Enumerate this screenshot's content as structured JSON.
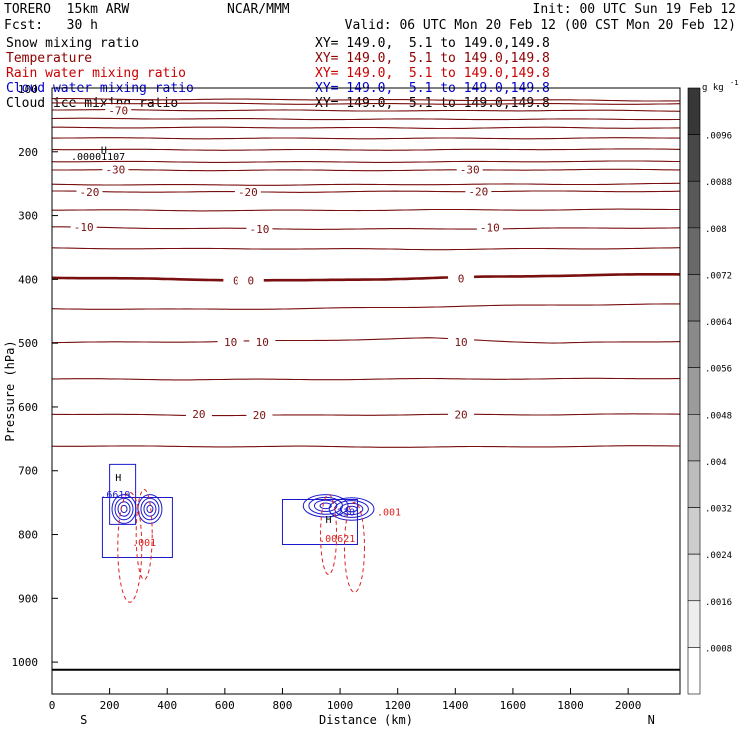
{
  "header": {
    "model": "TORERO  15km ARW",
    "org": "NCAR/MMM",
    "init": "Init: 00 UTC Sun 19 Feb 12",
    "fcst": "Fcst:   30 h",
    "valid": "Valid: 06 UTC Mon 20 Feb 12 (00 CST Mon 20 Feb 12)"
  },
  "fields": [
    {
      "name": "Snow mixing ratio",
      "xy": "XY= 149.0,  5.1 to 149.0,149.8",
      "color": "#000000"
    },
    {
      "name": "Temperature",
      "xy": "XY= 149.0,  5.1 to 149.0,149.8",
      "color": "#8b0000"
    },
    {
      "name": "Rain water mixing ratio",
      "xy": "XY= 149.0,  5.1 to 149.0,149.8",
      "color": "#cc0000"
    },
    {
      "name": "Cloud water mixing ratio",
      "xy": "XY= 149.0,  5.1 to 149.0,149.8",
      "color": "#0000cc"
    },
    {
      "name": "Cloud ice mixing ratio",
      "xy": "XY= 149.0,  5.1 to 149.0,149.8",
      "color": "#000000"
    }
  ],
  "overlay_label": "100",
  "colors": {
    "temperature": "#7a0f0f",
    "rain": "#dd2222",
    "cloud_water": "#1a1acc",
    "axis": "#000000"
  },
  "chart_data": {
    "type": "contour",
    "xlabel": "Distance (km)",
    "ylabel": "Pressure (hPa)",
    "xlim": [
      0,
      2180
    ],
    "ylim": [
      1050,
      100
    ],
    "x_ticks": [
      0,
      200,
      400,
      600,
      800,
      1000,
      1200,
      1400,
      1600,
      1800,
      2000
    ],
    "y_ticks": [
      200,
      300,
      400,
      500,
      600,
      700,
      800,
      900,
      1000
    ],
    "x_end_labels": {
      "left": "S",
      "right": "N"
    },
    "colorbar": {
      "unit": "g kg",
      "unit_sup": "-1",
      "ticks": [
        ".0008",
        ".0016",
        ".0024",
        ".0032",
        ".004",
        ".0048",
        ".0056",
        ".0064",
        ".0072",
        ".008",
        ".0088",
        ".0096"
      ]
    },
    "temperature_contours": [
      {
        "p": [
          117,
          118,
          118,
          119,
          119,
          120
        ],
        "label": ""
      },
      {
        "p": [
          124,
          124,
          125,
          125,
          125,
          125
        ],
        "label": ""
      },
      {
        "p": [
          134,
          135,
          135,
          136,
          135,
          136
        ],
        "label": "-70",
        "label_x": 760
      },
      {
        "p": [
          148,
          148,
          149,
          149,
          149,
          149
        ],
        "label": ""
      },
      {
        "p": [
          162,
          162,
          162,
          163,
          162,
          163
        ],
        "label": ""
      },
      {
        "p": [
          178,
          179,
          179,
          179,
          179,
          178
        ],
        "label": ""
      },
      {
        "p": [
          196,
          197,
          197,
          197,
          196,
          196
        ],
        "label": ""
      },
      {
        "p": [
          215,
          216,
          216,
          216,
          215,
          215
        ],
        "label": ""
      },
      {
        "p": [
          228,
          229,
          229,
          229,
          228,
          228
        ],
        "label": "-30",
        "label_x": 1060
      },
      {
        "p": [
          251,
          252,
          252,
          251,
          251,
          250
        ],
        "label": ""
      },
      {
        "p": [
          262,
          263,
          263,
          262,
          262,
          262
        ],
        "label": "-20",
        "label_x": 1080
      },
      {
        "p": [
          291,
          292,
          292,
          291,
          291,
          290
        ],
        "label": ""
      },
      {
        "p": [
          318,
          320,
          321,
          321,
          320,
          319
        ],
        "label": "-10",
        "label_x": 1110
      },
      {
        "p": [
          351,
          352,
          352,
          353,
          352,
          351
        ],
        "label": ""
      },
      {
        "p": [
          397,
          400,
          402,
          398,
          394,
          392
        ],
        "label": "0",
        "label_x": 1050,
        "bold": true
      },
      {
        "p": [
          446,
          447,
          446,
          443,
          440,
          439
        ],
        "label": ""
      },
      {
        "p": [
          499,
          498,
          496,
          492,
          500,
          497
        ],
        "label": "10",
        "label_x": 1050
      },
      {
        "p": [
          556,
          557,
          557,
          556,
          556,
          555
        ],
        "label": ""
      },
      {
        "p": [
          611,
          613,
          613,
          612,
          612,
          611
        ],
        "label": "20",
        "label_x": 1050
      },
      {
        "p": [
          661,
          662,
          662,
          663,
          662,
          661
        ],
        "label": ""
      }
    ],
    "temperature_labels": [
      {
        "x": 230,
        "p": 135,
        "text": "-70"
      },
      {
        "x": 220,
        "p": 228,
        "text": "-30"
      },
      {
        "x": 1450,
        "p": 228,
        "text": "-30"
      },
      {
        "x": 130,
        "p": 263,
        "text": "-20"
      },
      {
        "x": 680,
        "p": 263,
        "text": "-20"
      },
      {
        "x": 1480,
        "p": 262,
        "text": "-20"
      },
      {
        "x": 110,
        "p": 318,
        "text": "-10"
      },
      {
        "x": 720,
        "p": 321,
        "text": "-10"
      },
      {
        "x": 1520,
        "p": 319,
        "text": "-10"
      },
      {
        "x": 640,
        "p": 402,
        "text": "0"
      },
      {
        "x": 690,
        "p": 402,
        "text": "0"
      },
      {
        "x": 1420,
        "p": 399,
        "text": "0"
      },
      {
        "x": 620,
        "p": 498,
        "text": "10"
      },
      {
        "x": 730,
        "p": 498,
        "text": "10"
      },
      {
        "x": 1420,
        "p": 498,
        "text": "10"
      },
      {
        "x": 510,
        "p": 611,
        "text": "20"
      },
      {
        "x": 720,
        "p": 613,
        "text": "20"
      },
      {
        "x": 1420,
        "p": 612,
        "text": "20"
      }
    ],
    "annotations": [
      {
        "x": 180,
        "p": 203,
        "text": "H"
      },
      {
        "x": 160,
        "p": 213,
        "text": ".00001107"
      },
      {
        "x": 230,
        "p": 716,
        "text": "H"
      },
      {
        "x": 220,
        "p": 743,
        "text": ".6619"
      },
      {
        "x": 320,
        "p": 818,
        "text": ".001"
      },
      {
        "x": 1010,
        "p": 770,
        "text": ".230"
      },
      {
        "x": 1170,
        "p": 770,
        "text": ".001"
      },
      {
        "x": 990,
        "p": 812,
        "text": ".00621"
      },
      {
        "x": 960,
        "p": 782,
        "text": "H"
      }
    ]
  }
}
